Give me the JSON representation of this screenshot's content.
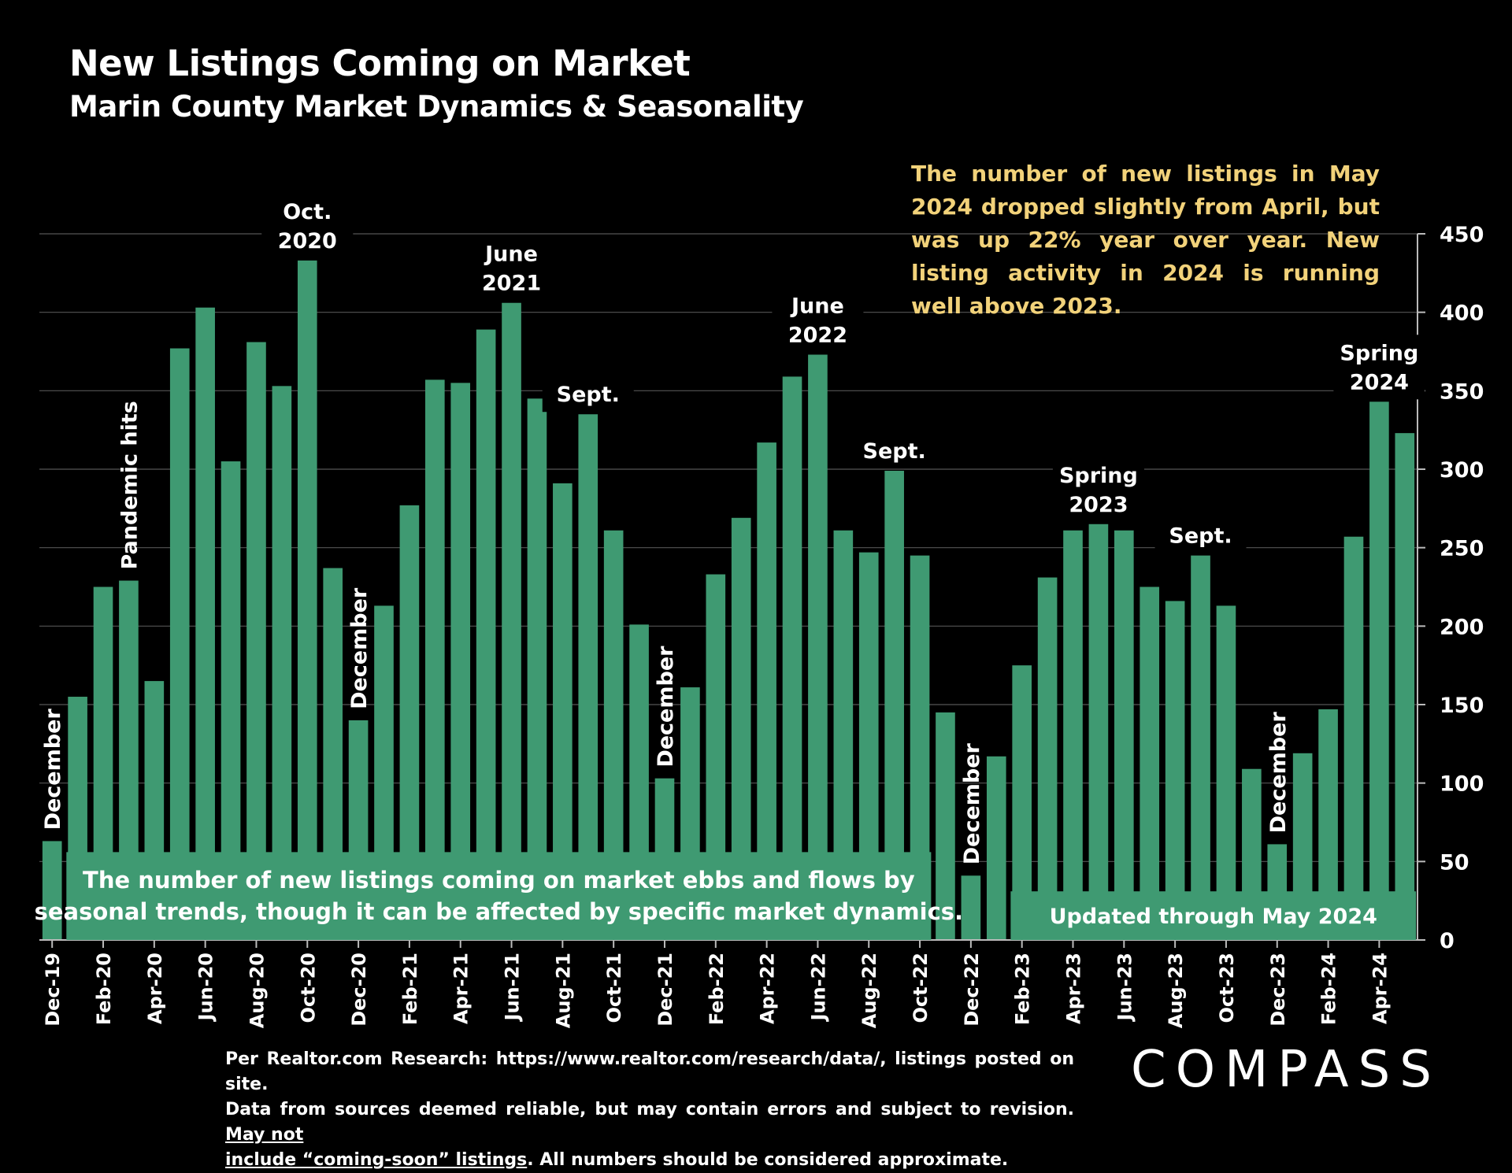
{
  "header": {
    "title": "New Listings Coming on Market",
    "subtitle": "Marin County Market Dynamics & Seasonality"
  },
  "note": "The number of new listings in May 2024 dropped slightly from April, but was up 22% year over year. New listing activity in 2024 is running well above 2023.",
  "footer": {
    "line1": "Per Realtor.com Research: https://www.realtor.com/research/data/, listings posted on site.",
    "line2a": "Data from sources deemed reliable, but may contain errors and subject to revision. ",
    "line2b": "May not",
    "line3a": "include “coming-soon” listings",
    "line3b": ". All numbers should be considered approximate."
  },
  "logo": "COMPASS",
  "colors": {
    "bar": "#3f9a72",
    "grid": "#555555",
    "note": "#f2d27a",
    "background": "#000000"
  },
  "chart_data": {
    "type": "bar",
    "categories": [
      "Dec-19",
      "Jan-20",
      "Feb-20",
      "Mar-20",
      "Apr-20",
      "May-20",
      "Jun-20",
      "Jul-20",
      "Aug-20",
      "Sep-20",
      "Oct-20",
      "Nov-20",
      "Dec-20",
      "Jan-21",
      "Feb-21",
      "Mar-21",
      "Apr-21",
      "May-21",
      "Jun-21",
      "Jul-21",
      "Aug-21",
      "Sep-21",
      "Oct-21",
      "Nov-21",
      "Dec-21",
      "Jan-22",
      "Feb-22",
      "Mar-22",
      "Apr-22",
      "May-22",
      "Jun-22",
      "Jul-22",
      "Aug-22",
      "Sep-22",
      "Oct-22",
      "Nov-22",
      "Dec-22",
      "Jan-23",
      "Feb-23",
      "Mar-23",
      "Apr-23",
      "May-23",
      "Jun-23",
      "Jul-23",
      "Aug-23",
      "Sep-23",
      "Oct-23",
      "Nov-23",
      "Dec-23",
      "Jan-24",
      "Feb-24",
      "Mar-24",
      "Apr-24",
      "May-24"
    ],
    "tick_labels": [
      "Dec-19",
      "Feb-20",
      "Apr-20",
      "Jun-20",
      "Aug-20",
      "Oct-20",
      "Dec-20",
      "Feb-21",
      "Apr-21",
      "Jun-21",
      "Aug-21",
      "Oct-21",
      "Dec-21",
      "Feb-22",
      "Apr-22",
      "Jun-22",
      "Aug-22",
      "Oct-22",
      "Dec-22",
      "Feb-23",
      "Apr-23",
      "Jun-23",
      "Aug-23",
      "Oct-23",
      "Dec-23",
      "Feb-24",
      "Apr-24"
    ],
    "values": [
      63,
      155,
      225,
      229,
      165,
      377,
      403,
      305,
      381,
      353,
      433,
      237,
      140,
      213,
      277,
      357,
      355,
      389,
      406,
      345,
      291,
      335,
      261,
      201,
      103,
      161,
      233,
      269,
      317,
      359,
      373,
      261,
      247,
      299,
      245,
      145,
      41,
      117,
      175,
      231,
      261,
      265,
      261,
      225,
      216,
      245,
      213,
      109,
      61,
      119,
      147,
      257,
      343,
      323
    ],
    "ylim": [
      0,
      450
    ],
    "yticks": [
      0,
      50,
      100,
      150,
      200,
      250,
      300,
      350,
      400,
      450
    ],
    "y_axis_side": "right",
    "grid": true,
    "annotations": [
      {
        "index": 0,
        "text": "December",
        "style": "vertical"
      },
      {
        "index": 3,
        "text": "Pandemic hits",
        "style": "vertical"
      },
      {
        "index": 10,
        "text": "Oct.\n2020",
        "style": "above"
      },
      {
        "index": 12,
        "text": "December",
        "style": "vertical"
      },
      {
        "index": 18,
        "text": "June\n2021",
        "style": "above"
      },
      {
        "index": 21,
        "text": "Sept.",
        "style": "above"
      },
      {
        "index": 24,
        "text": "December",
        "style": "vertical"
      },
      {
        "index": 30,
        "text": "June\n2022",
        "style": "above"
      },
      {
        "index": 33,
        "text": "Sept.",
        "style": "above"
      },
      {
        "index": 36,
        "text": "December",
        "style": "vertical"
      },
      {
        "index": 41,
        "text": "Spring\n2023",
        "style": "above"
      },
      {
        "index": 45,
        "text": "Sept.",
        "style": "above"
      },
      {
        "index": 48,
        "text": "December",
        "style": "vertical"
      },
      {
        "index": 52,
        "text": "Spring\n2024",
        "style": "above"
      }
    ],
    "boxes": [
      {
        "text": "The number of new listings coming on market ebbs and flows by\nseasonal trends, though it can be affected by specific market dynamics.",
        "from_index": 1,
        "to_index": 34,
        "top_value": 56
      },
      {
        "text": "Updated through May 2024",
        "from_index": 38,
        "to_index": 53,
        "top_value": 31
      }
    ]
  }
}
